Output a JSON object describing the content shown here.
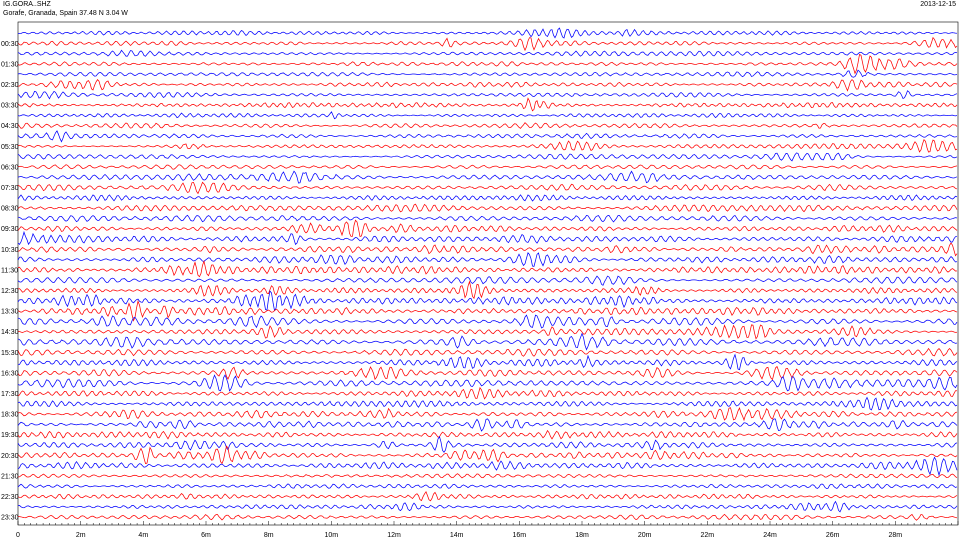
{
  "header": {
    "station_code": "IG.GORA..SHZ",
    "location": "Gorafe, Granada, Spain  37.48 N 3.04 W",
    "date": "2013-12-15"
  },
  "chart_data": {
    "type": "line",
    "title": "IG.GORA..SHZ",
    "subtitle": "Gorafe, Granada, Spain  37.48 N 3.04 W",
    "xlabel": "",
    "ylabel": "",
    "x_range_minutes": [
      0,
      30
    ],
    "x_tick_labels": [
      "0",
      "2m",
      "4m",
      "6m",
      "8m",
      "10m",
      "12m",
      "14m",
      "16m",
      "18m",
      "20m",
      "22m",
      "24m",
      "26m",
      "28m"
    ],
    "x_tick_values": [
      0,
      2,
      4,
      6,
      8,
      10,
      12,
      14,
      16,
      18,
      20,
      22,
      24,
      26,
      28
    ],
    "hour_labels": [
      "00:30",
      "01:30",
      "02:30",
      "03:30",
      "04:30",
      "05:30",
      "06:30",
      "07:30",
      "08:30",
      "09:30",
      "10:30",
      "11:30",
      "12:30",
      "13:30",
      "14:30",
      "15:30",
      "16:30",
      "17:30",
      "18:30",
      "19:30",
      "20:30",
      "21:30",
      "22:30",
      "23:30"
    ],
    "trace_count": 48,
    "trace_colors": [
      "#0000ff",
      "#ff0000"
    ],
    "grid": false,
    "legend": "none"
  }
}
